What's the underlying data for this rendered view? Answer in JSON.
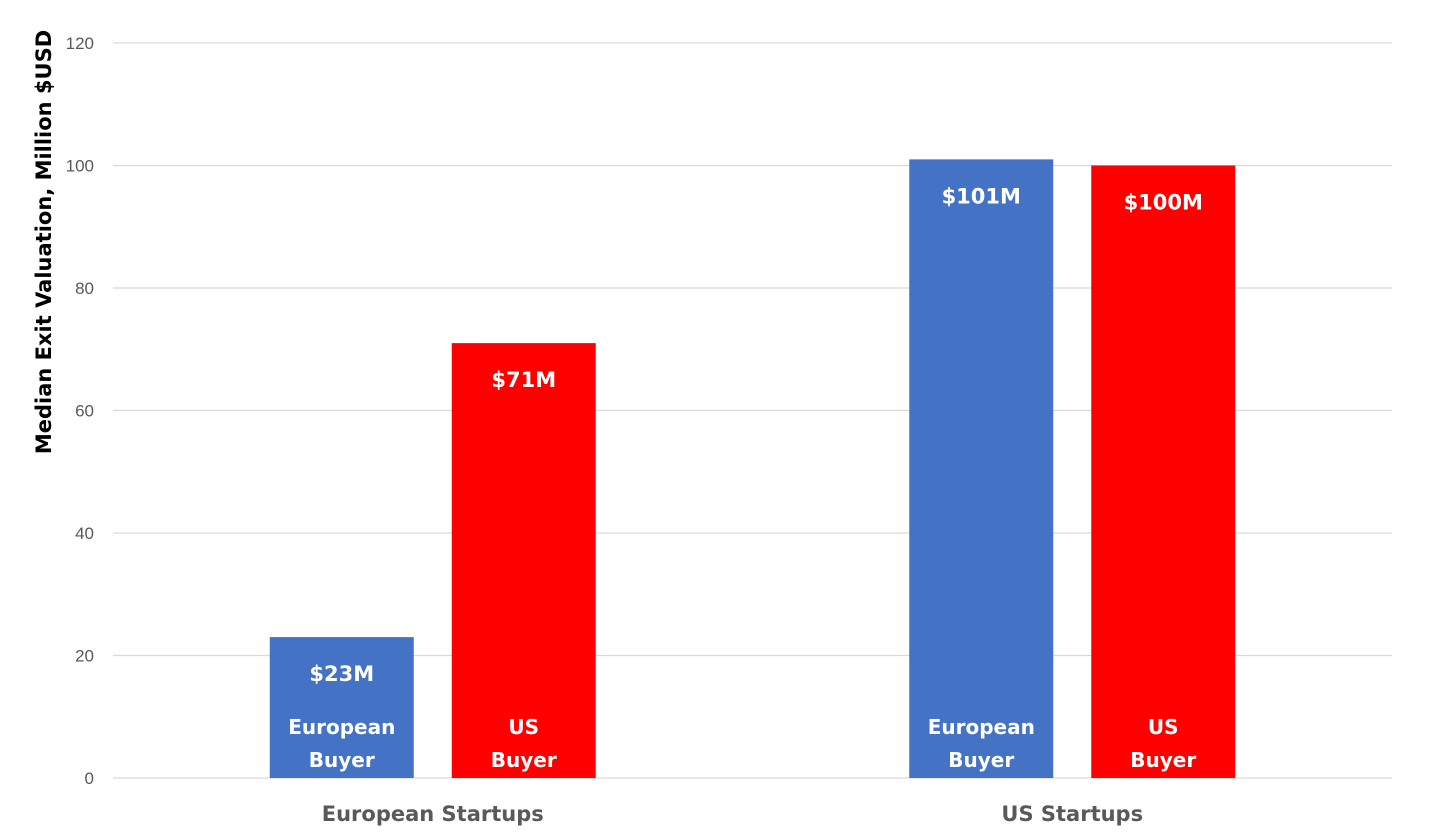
{
  "chart_data": {
    "type": "bar",
    "title": "",
    "xlabel": "",
    "ylabel": "Median Exit Valuation, Million $USD",
    "ylim": [
      0,
      120
    ],
    "yticks": [
      0,
      20,
      40,
      60,
      80,
      100,
      120
    ],
    "grid": true,
    "categories": [
      "European Startups",
      "US Startups"
    ],
    "series": [
      {
        "name": "European Buyer",
        "label_lines": [
          "European",
          "Buyer"
        ],
        "color": "#4472c4",
        "values": [
          23,
          101
        ],
        "data_labels": [
          "$23M",
          "$101M"
        ]
      },
      {
        "name": "US Buyer",
        "label_lines": [
          "US",
          "Buyer"
        ],
        "color": "#ff0000",
        "values": [
          71,
          100
        ],
        "data_labels": [
          "$71M",
          "$100M"
        ]
      }
    ]
  }
}
